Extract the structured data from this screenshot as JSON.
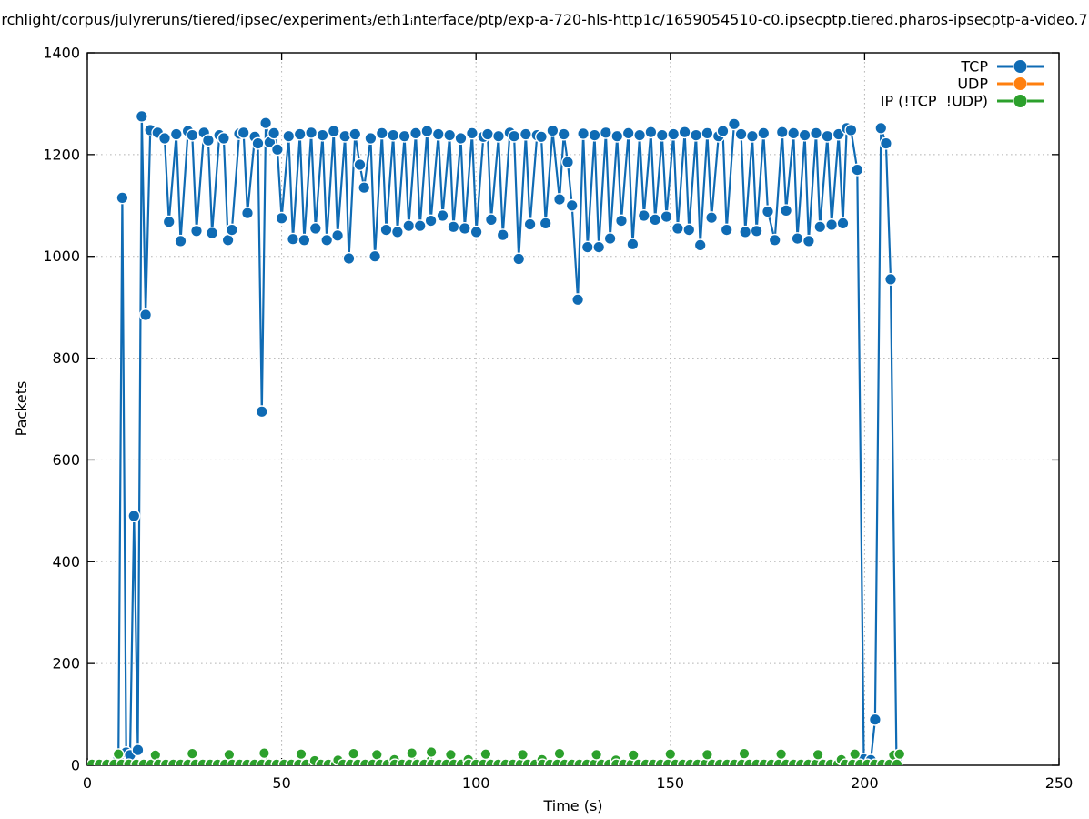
{
  "title": "rchlight/corpus/julyreruns/tiered/ipsec/experiment₃/eth1ᵢnterface/ptp/exp-a-720-hls-http1c/1659054510-c0.ipsecptp.tiered.pharos-ipsecptp-a-video.7",
  "axes": {
    "xlabel": "Time (s)",
    "ylabel": "Packets",
    "x_ticks": [
      0,
      50,
      100,
      150,
      200,
      250
    ],
    "y_ticks": [
      0,
      200,
      400,
      600,
      800,
      1000,
      1200,
      1400
    ],
    "x_range": [
      0,
      250
    ],
    "y_range": [
      0,
      1400
    ],
    "grid": "dotted"
  },
  "legend": {
    "position": "top-right-inside",
    "entries": [
      {
        "label": "TCP",
        "color": "#0f6bb4"
      },
      {
        "label": "UDP",
        "color": "#ff7f0e"
      },
      {
        "label": "IP (!TCP  !UDP)",
        "color": "#2ca02c"
      }
    ]
  },
  "chart_data": {
    "type": "line",
    "style": "dashed linespoints (gnuplot), filled circle markers with white rim",
    "xlabel": "Time (s)",
    "ylabel": "Packets",
    "xlim": [
      0,
      250
    ],
    "ylim": [
      0,
      1400
    ],
    "series": [
      {
        "name": "TCP",
        "color": "#0f6bb4",
        "points": [
          [
            8,
            15
          ],
          [
            9,
            1115
          ],
          [
            10,
            25
          ],
          [
            11,
            20
          ],
          [
            12,
            490
          ],
          [
            13,
            30
          ],
          [
            14,
            1275
          ],
          [
            15,
            885
          ],
          [
            16.2,
            1248
          ],
          [
            18.1,
            1243
          ],
          [
            19.9,
            1232
          ],
          [
            21,
            1068
          ],
          [
            22.9,
            1240
          ],
          [
            24,
            1030
          ],
          [
            25.9,
            1246
          ],
          [
            27,
            1238
          ],
          [
            28.1,
            1050
          ],
          [
            30,
            1243
          ],
          [
            31.1,
            1228
          ],
          [
            32.1,
            1046
          ],
          [
            34,
            1238
          ],
          [
            35.1,
            1232
          ],
          [
            36.2,
            1032
          ],
          [
            37.2,
            1052
          ],
          [
            39.1,
            1241
          ],
          [
            40.2,
            1243
          ],
          [
            41.2,
            1085
          ],
          [
            43.1,
            1235
          ],
          [
            43.9,
            1222
          ],
          [
            44.9,
            695
          ],
          [
            45.9,
            1262
          ],
          [
            46.9,
            1224
          ],
          [
            48,
            1242
          ],
          [
            48.9,
            1210
          ],
          [
            50,
            1075
          ],
          [
            51.8,
            1236
          ],
          [
            52.9,
            1034
          ],
          [
            54.7,
            1240
          ],
          [
            55.8,
            1032
          ],
          [
            57.6,
            1243
          ],
          [
            58.7,
            1055
          ],
          [
            60.5,
            1238
          ],
          [
            61.6,
            1032
          ],
          [
            63.4,
            1246
          ],
          [
            64.4,
            1041
          ],
          [
            66.3,
            1236
          ],
          [
            67.3,
            996
          ],
          [
            68.9,
            1240
          ],
          [
            70.1,
            1180
          ],
          [
            71.2,
            1135
          ],
          [
            72.9,
            1232
          ],
          [
            74,
            1000
          ],
          [
            75.8,
            1242
          ],
          [
            76.9,
            1052
          ],
          [
            78.7,
            1238
          ],
          [
            79.8,
            1048
          ],
          [
            81.6,
            1236
          ],
          [
            82.7,
            1060
          ],
          [
            84.5,
            1242
          ],
          [
            85.6,
            1060
          ],
          [
            87.4,
            1246
          ],
          [
            88.4,
            1070
          ],
          [
            90.3,
            1240
          ],
          [
            91.4,
            1080
          ],
          [
            93.2,
            1238
          ],
          [
            94.2,
            1058
          ],
          [
            96.1,
            1232
          ],
          [
            97.1,
            1055
          ],
          [
            99,
            1242
          ],
          [
            100.1,
            1048
          ],
          [
            101.9,
            1235
          ],
          [
            103,
            1240
          ],
          [
            103.9,
            1072
          ],
          [
            105.8,
            1236
          ],
          [
            106.9,
            1042
          ],
          [
            108.7,
            1243
          ],
          [
            109.8,
            1236
          ],
          [
            111,
            995
          ],
          [
            112.8,
            1240
          ],
          [
            113.9,
            1063
          ],
          [
            115.7,
            1238
          ],
          [
            116.8,
            1235
          ],
          [
            117.9,
            1065
          ],
          [
            119.7,
            1247
          ],
          [
            121.5,
            1112
          ],
          [
            122.6,
            1240
          ],
          [
            123.6,
            1185
          ],
          [
            124.7,
            1100
          ],
          [
            126.2,
            915
          ],
          [
            127.6,
            1241
          ],
          [
            128.7,
            1018
          ],
          [
            130.5,
            1238
          ],
          [
            131.6,
            1018
          ],
          [
            133.4,
            1243
          ],
          [
            134.5,
            1035
          ],
          [
            136.3,
            1236
          ],
          [
            137.4,
            1070
          ],
          [
            139.2,
            1242
          ],
          [
            140.3,
            1024
          ],
          [
            142.1,
            1238
          ],
          [
            143.2,
            1080
          ],
          [
            145,
            1244
          ],
          [
            146.1,
            1072
          ],
          [
            147.9,
            1238
          ],
          [
            149,
            1078
          ],
          [
            150.8,
            1240
          ],
          [
            151.9,
            1055
          ],
          [
            153.7,
            1244
          ],
          [
            154.8,
            1052
          ],
          [
            156.6,
            1238
          ],
          [
            157.7,
            1022
          ],
          [
            159.5,
            1242
          ],
          [
            160.6,
            1076
          ],
          [
            162.4,
            1236
          ],
          [
            163.5,
            1246
          ],
          [
            164.5,
            1052
          ],
          [
            166.4,
            1260
          ],
          [
            168.2,
            1240
          ],
          [
            169.3,
            1048
          ],
          [
            171.1,
            1236
          ],
          [
            172.2,
            1050
          ],
          [
            174,
            1242
          ],
          [
            175.1,
            1088
          ],
          [
            176.9,
            1032
          ],
          [
            178.8,
            1244
          ],
          [
            179.8,
            1090
          ],
          [
            181.7,
            1242
          ],
          [
            182.7,
            1035
          ],
          [
            184.6,
            1238
          ],
          [
            185.6,
            1030
          ],
          [
            187.5,
            1242
          ],
          [
            188.5,
            1058
          ],
          [
            190.4,
            1236
          ],
          [
            191.5,
            1062
          ],
          [
            193.3,
            1240
          ],
          [
            194.4,
            1065
          ],
          [
            195.4,
            1252
          ],
          [
            196.5,
            1248
          ],
          [
            198.1,
            1170
          ],
          [
            199.8,
            12
          ],
          [
            201.6,
            10
          ],
          [
            202.7,
            90
          ],
          [
            204.2,
            1252
          ],
          [
            205.5,
            1222
          ],
          [
            206.7,
            955
          ],
          [
            208.2,
            12
          ]
        ]
      },
      {
        "name": "UDP",
        "color": "#ff7f0e",
        "points": []
      },
      {
        "name": "IP (!TCP  !UDP)",
        "color": "#2ca02c",
        "points": [
          [
            8,
            22
          ],
          [
            17.5,
            20
          ],
          [
            27,
            23
          ],
          [
            36.5,
            21
          ],
          [
            45.5,
            24
          ],
          [
            55,
            22
          ],
          [
            58.5,
            9
          ],
          [
            64.5,
            10
          ],
          [
            68.5,
            23
          ],
          [
            74.5,
            21
          ],
          [
            79,
            11
          ],
          [
            83.5,
            24
          ],
          [
            88.5,
            26
          ],
          [
            93.5,
            21
          ],
          [
            98,
            11
          ],
          [
            102.5,
            22
          ],
          [
            112,
            21
          ],
          [
            117,
            11
          ],
          [
            121.5,
            23
          ],
          [
            131,
            21
          ],
          [
            136,
            10
          ],
          [
            140.5,
            20
          ],
          [
            150,
            22
          ],
          [
            159.5,
            21
          ],
          [
            169,
            23
          ],
          [
            178.5,
            22
          ],
          [
            188,
            21
          ],
          [
            194,
            11
          ],
          [
            197.5,
            22
          ],
          [
            207.5,
            20
          ],
          [
            209,
            22
          ]
        ],
        "baseline": {
          "from": 1.2,
          "to": 209.6,
          "step": 1.9,
          "value": 2
        }
      }
    ]
  }
}
